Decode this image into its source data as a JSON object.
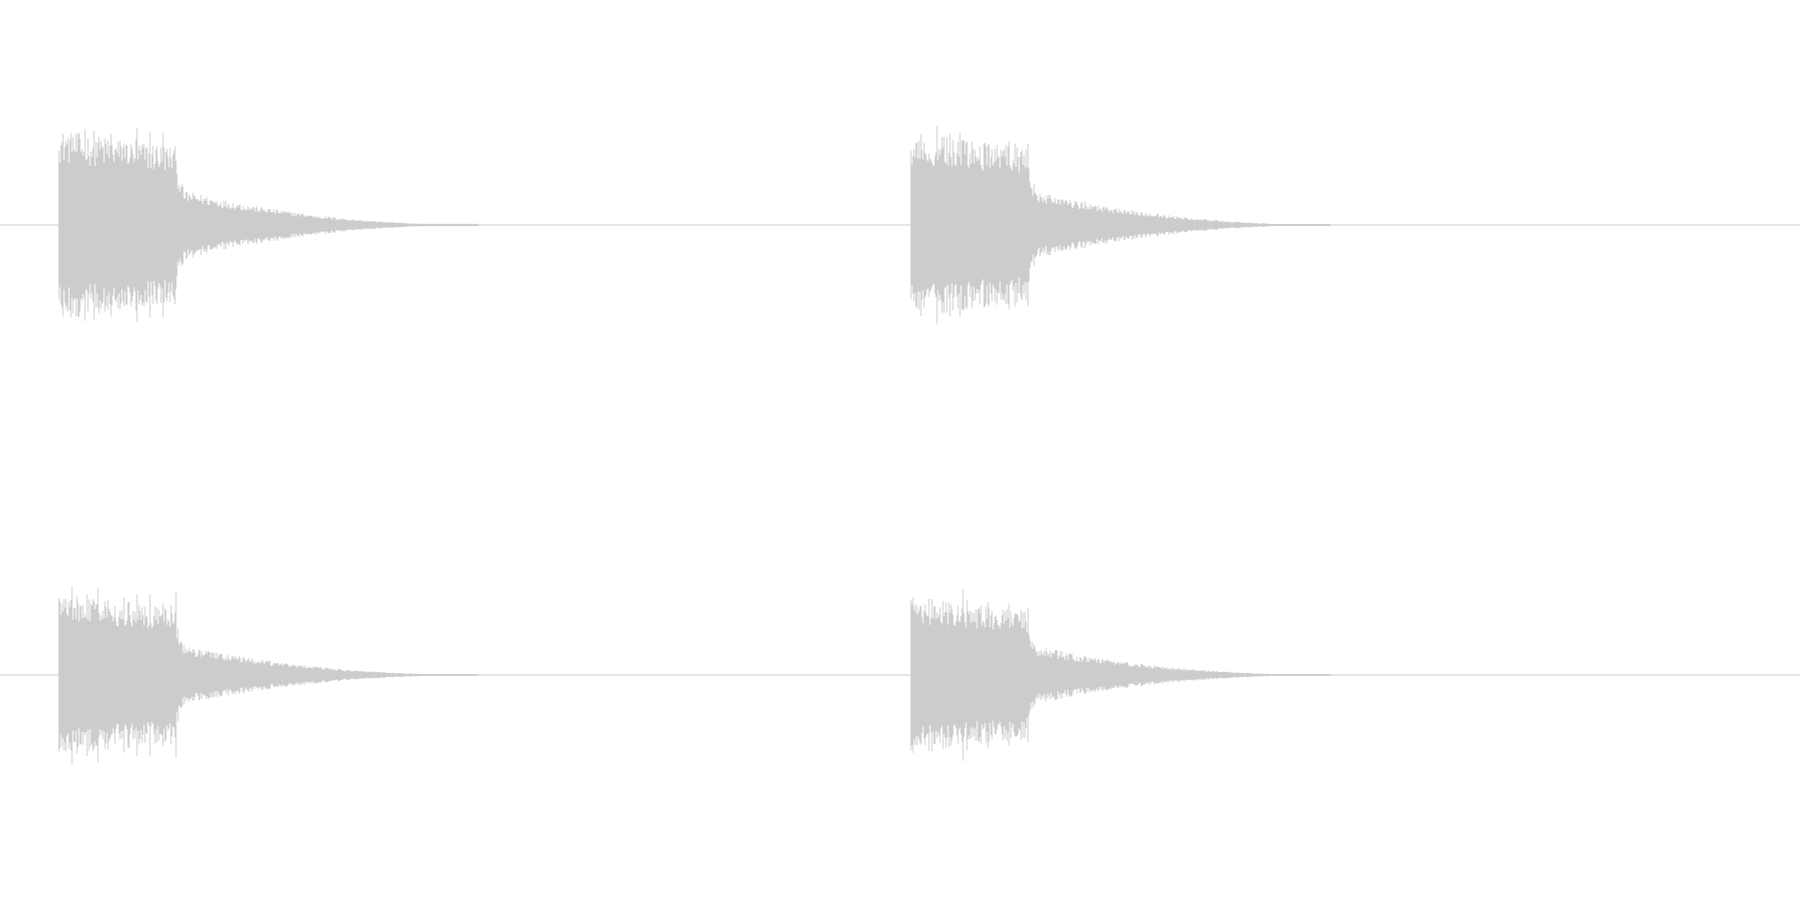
{
  "waveform": {
    "channel_count": 2,
    "clips_per_channel": 2,
    "colors": {
      "background": "#ffffff",
      "waveform": "#cccccc",
      "baseline": "#cccccc"
    },
    "channels": [
      {
        "name": "",
        "clips": [
          {
            "peak_amplitude": 1.0,
            "decay": "fast"
          },
          {
            "peak_amplitude": 0.98,
            "decay": "fast"
          }
        ]
      },
      {
        "name": "",
        "clips": [
          {
            "peak_amplitude": 0.93,
            "decay": "fast"
          },
          {
            "peak_amplitude": 0.9,
            "decay": "fast"
          }
        ]
      }
    ]
  }
}
